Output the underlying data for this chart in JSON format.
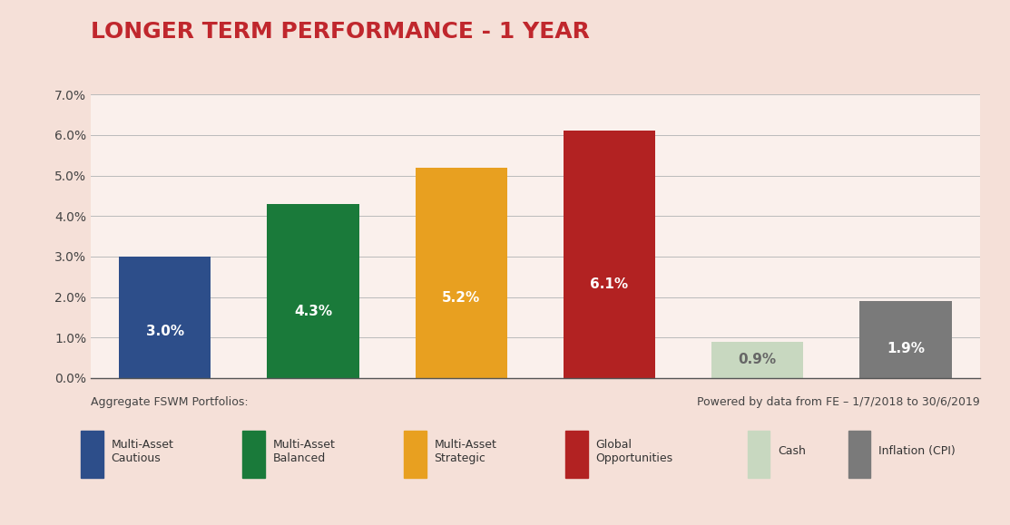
{
  "title": "LONGER TERM PERFORMANCE - 1 YEAR",
  "title_color": "#c0272d",
  "title_fontsize": 18,
  "background_color": "#f5e0d8",
  "plot_bg_color": "#faf0ec",
  "categories": [
    "Multi-Asset\nCautious",
    "Multi-Asset\nBalanced",
    "Multi-Asset\nStrategic",
    "Global\nOpportunities",
    "Cash",
    "Inflation (CPI)"
  ],
  "values": [
    3.0,
    4.3,
    5.2,
    6.1,
    0.9,
    1.9
  ],
  "bar_colors": [
    "#2d4e8a",
    "#1a7a3a",
    "#e8a020",
    "#b22222",
    "#c8d8c0",
    "#7a7a7a"
  ],
  "label_colors": [
    "#ffffff",
    "#ffffff",
    "#ffffff",
    "#ffffff",
    "#666666",
    "#ffffff"
  ],
  "ylim": [
    0,
    7.0
  ],
  "yticks": [
    0.0,
    1.0,
    2.0,
    3.0,
    4.0,
    5.0,
    6.0,
    7.0
  ],
  "ytick_labels": [
    "0.0%",
    "1.0%",
    "2.0%",
    "3.0%",
    "4.0%",
    "5.0%",
    "6.0%",
    "7.0%"
  ],
  "footnote_left": "Aggregate FSWM Portfolios:",
  "footnote_right": "Powered by data from FE – 1/7/2018 to 30/6/2019",
  "legend_labels": [
    "Multi-Asset\nCautious",
    "Multi-Asset\nBalanced",
    "Multi-Asset\nStrategic",
    "Global\nOpportunities",
    "Cash",
    "Inflation (CPI)"
  ],
  "legend_colors": [
    "#2d4e8a",
    "#1a7a3a",
    "#e8a020",
    "#b22222",
    "#c8d8c0",
    "#7a7a7a"
  ],
  "bar_value_labels": [
    "3.0%",
    "4.3%",
    "5.2%",
    "6.1%",
    "0.9%",
    "1.9%"
  ],
  "label_fontsize": 11
}
